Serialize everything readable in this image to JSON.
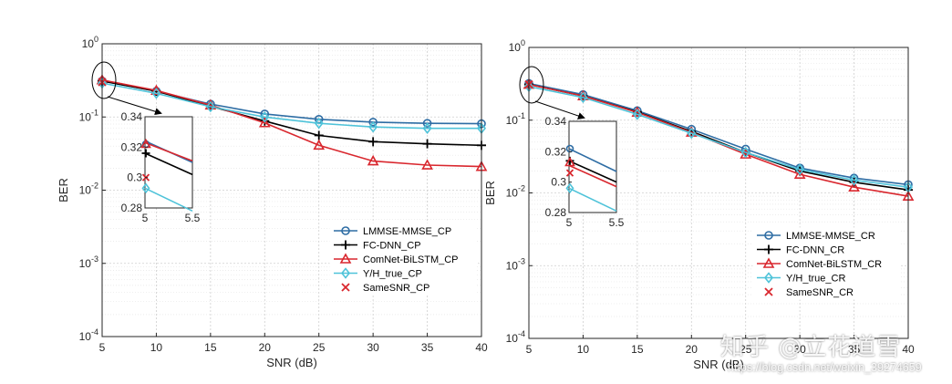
{
  "chart_data": [
    {
      "type": "line",
      "yscale": "log",
      "xlabel": "SNR (dB)",
      "ylabel": "BER",
      "xlim": [
        5,
        40
      ],
      "ylim": [
        0.0001,
        1
      ],
      "grid": true,
      "legend_position": "bottom-right",
      "xticks": [
        "5",
        "10",
        "15",
        "20",
        "25",
        "30",
        "35",
        "40"
      ],
      "yticks": [
        {
          "base": "10",
          "exp": "0"
        },
        {
          "base": "10",
          "exp": "-1"
        },
        {
          "base": "10",
          "exp": "-2"
        },
        {
          "base": "10",
          "exp": "-3"
        },
        {
          "base": "10",
          "exp": "-4"
        }
      ],
      "series": [
        {
          "name": "LMMSE-MMSE_CP",
          "color": "#2e6da4",
          "marker": "circle",
          "x": [
            5,
            10,
            15,
            20,
            25,
            30,
            35,
            40
          ],
          "values": [
            0.31,
            0.225,
            0.15,
            0.11,
            0.093,
            0.085,
            0.082,
            0.081
          ]
        },
        {
          "name": "FC-DNN_CP",
          "color": "#000000",
          "marker": "plus",
          "x": [
            5,
            10,
            15,
            20,
            25,
            30,
            35,
            40
          ],
          "values": [
            0.31,
            0.225,
            0.14,
            0.088,
            0.056,
            0.046,
            0.043,
            0.041
          ]
        },
        {
          "name": "ComNet-BiLSTM_CP",
          "color": "#d9272e",
          "marker": "triangle",
          "x": [
            5,
            10,
            15,
            20,
            25,
            30,
            35,
            40
          ],
          "values": [
            0.32,
            0.23,
            0.145,
            0.083,
            0.041,
            0.025,
            0.022,
            0.021
          ]
        },
        {
          "name": "Y/H_true_CP",
          "color": "#4fc3d9",
          "marker": "diamond",
          "x": [
            5,
            10,
            15,
            20,
            25,
            30,
            35,
            40
          ],
          "values": [
            0.29,
            0.21,
            0.138,
            0.1,
            0.082,
            0.073,
            0.07,
            0.07
          ]
        },
        {
          "name": "SameSNR_CP",
          "color": "#d9272e",
          "marker": "x",
          "x": [
            5
          ],
          "values": [
            0.3
          ]
        }
      ],
      "inset": {
        "xlim": [
          5,
          5.5
        ],
        "ylim": [
          0.28,
          0.34
        ],
        "xticks": [
          "5",
          "5.5"
        ],
        "yticks": [
          "0.34",
          "0.32",
          "0.3",
          "0.28"
        ],
        "lines": [
          {
            "color": "#2e6da4",
            "y": [
              0.324,
              0.31
            ]
          },
          {
            "color": "#d9272e",
            "y": [
              0.323,
              0.311
            ]
          },
          {
            "color": "#000000",
            "y": [
              0.316,
              0.302
            ]
          },
          {
            "color": "#4fc3d9",
            "y": [
              0.293,
              0.278
            ]
          }
        ],
        "markers": [
          {
            "type": "circle",
            "color": "#2e6da4",
            "y": 0.322
          },
          {
            "type": "triangle",
            "color": "#d9272e",
            "y": 0.322
          },
          {
            "type": "plus",
            "color": "#000000",
            "y": 0.316
          },
          {
            "type": "x",
            "color": "#d9272e",
            "y": 0.3
          },
          {
            "type": "diamond",
            "color": "#4fc3d9",
            "y": 0.293
          }
        ]
      }
    },
    {
      "type": "line",
      "yscale": "log",
      "xlabel": "SNR (dB)",
      "ylabel": "BER",
      "xlim": [
        5,
        40
      ],
      "ylim": [
        0.0001,
        1
      ],
      "grid": true,
      "legend_position": "bottom-right",
      "xticks": [
        "5",
        "10",
        "15",
        "20",
        "25",
        "30",
        "35",
        "40"
      ],
      "yticks": [
        {
          "base": "10",
          "exp": "0"
        },
        {
          "base": "10",
          "exp": "-1"
        },
        {
          "base": "10",
          "exp": "-2"
        },
        {
          "base": "10",
          "exp": "-3"
        },
        {
          "base": "10",
          "exp": "-4"
        }
      ],
      "series": [
        {
          "name": "LMMSE-MMSE_CR",
          "color": "#2e6da4",
          "marker": "circle",
          "x": [
            5,
            10,
            15,
            20,
            25,
            30,
            35,
            40
          ],
          "values": [
            0.32,
            0.225,
            0.135,
            0.075,
            0.04,
            0.022,
            0.016,
            0.013
          ]
        },
        {
          "name": "FC-DNN_CR",
          "color": "#000000",
          "marker": "plus",
          "x": [
            5,
            10,
            15,
            20,
            25,
            30,
            35,
            40
          ],
          "values": [
            0.31,
            0.215,
            0.13,
            0.07,
            0.036,
            0.02,
            0.014,
            0.011
          ]
        },
        {
          "name": "ComNet-BiLSTM_CR",
          "color": "#d9272e",
          "marker": "triangle",
          "x": [
            5,
            10,
            15,
            20,
            25,
            30,
            35,
            40
          ],
          "values": [
            0.31,
            0.215,
            0.128,
            0.068,
            0.034,
            0.018,
            0.012,
            0.009
          ]
        },
        {
          "name": "Y/H_true_CR",
          "color": "#4fc3d9",
          "marker": "diamond",
          "x": [
            5,
            10,
            15,
            20,
            25,
            30,
            35,
            40
          ],
          "values": [
            0.29,
            0.205,
            0.12,
            0.066,
            0.036,
            0.021,
            0.015,
            0.012
          ]
        },
        {
          "name": "SameSNR_CR",
          "color": "#d9272e",
          "marker": "x",
          "x": [
            5
          ],
          "values": [
            0.31
          ]
        }
      ],
      "inset": {
        "xlim": [
          5,
          5.5
        ],
        "ylim": [
          0.28,
          0.34
        ],
        "xticks": [
          "5",
          "5.5"
        ],
        "yticks": [
          "0.34",
          "0.32",
          "0.3",
          "0.28"
        ],
        "lines": [
          {
            "color": "#2e6da4",
            "y": [
              0.322,
              0.307
            ]
          },
          {
            "color": "#000000",
            "y": [
              0.314,
              0.3
            ]
          },
          {
            "color": "#d9272e",
            "y": [
              0.311,
              0.297
            ]
          },
          {
            "color": "#4fc3d9",
            "y": [
              0.296,
              0.281
            ]
          }
        ],
        "markers": [
          {
            "type": "circle",
            "color": "#2e6da4",
            "y": 0.322
          },
          {
            "type": "plus",
            "color": "#000000",
            "y": 0.314
          },
          {
            "type": "triangle",
            "color": "#d9272e",
            "y": 0.313
          },
          {
            "type": "x",
            "color": "#d9272e",
            "y": 0.306
          },
          {
            "type": "diamond",
            "color": "#4fc3d9",
            "y": 0.296
          }
        ]
      }
    }
  ],
  "watermark": {
    "text": "知乎 @立花道雪",
    "url": "https://blog.csdn.net/weixin_39274659"
  }
}
